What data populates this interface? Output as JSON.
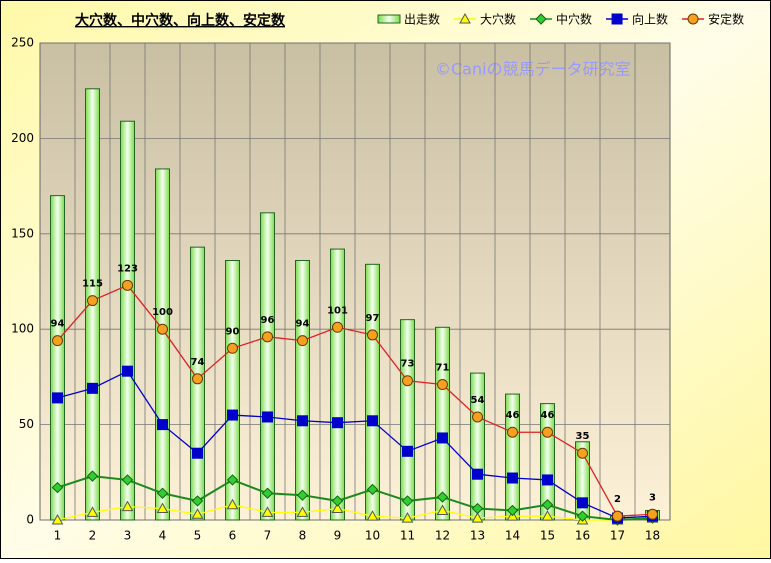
{
  "chart_data": {
    "type": "bar-line",
    "title": "大穴数、中穴数、向上数、安定数",
    "watermark": "©Caniの競馬データ研究室",
    "categories": [
      "1",
      "2",
      "3",
      "4",
      "5",
      "6",
      "7",
      "8",
      "9",
      "10",
      "11",
      "12",
      "13",
      "14",
      "15",
      "16",
      "17",
      "18"
    ],
    "ylim": [
      0,
      250
    ],
    "yticks": [
      0,
      50,
      100,
      150,
      200,
      250
    ],
    "grid": true,
    "series": [
      {
        "name": "出走数",
        "kind": "bar",
        "color": "#66cc33",
        "values": [
          170,
          226,
          209,
          184,
          143,
          136,
          161,
          136,
          142,
          134,
          105,
          101,
          77,
          66,
          61,
          41,
          2,
          5
        ]
      },
      {
        "name": "大穴数",
        "kind": "line",
        "marker": "triangle",
        "color": "#ffff00",
        "values": [
          0,
          4,
          7,
          6,
          3,
          8,
          4,
          4,
          6,
          2,
          1,
          5,
          1,
          2,
          2,
          0,
          0,
          1
        ]
      },
      {
        "name": "中穴数",
        "kind": "line",
        "marker": "diamond",
        "color": "#1a8a1a",
        "values": [
          17,
          23,
          21,
          14,
          10,
          21,
          14,
          13,
          10,
          16,
          10,
          12,
          6,
          5,
          8,
          2,
          0,
          1
        ]
      },
      {
        "name": "向上数",
        "kind": "line",
        "marker": "square",
        "color": "#0000cc",
        "values": [
          64,
          69,
          78,
          50,
          35,
          55,
          54,
          52,
          51,
          52,
          36,
          43,
          24,
          22,
          21,
          9,
          1,
          2
        ]
      },
      {
        "name": "安定数",
        "kind": "line",
        "marker": "circle",
        "color": "#dd2222",
        "data_labels": true,
        "values": [
          94,
          115,
          123,
          100,
          74,
          90,
          96,
          94,
          101,
          97,
          73,
          71,
          54,
          46,
          46,
          35,
          2,
          3
        ]
      }
    ]
  }
}
